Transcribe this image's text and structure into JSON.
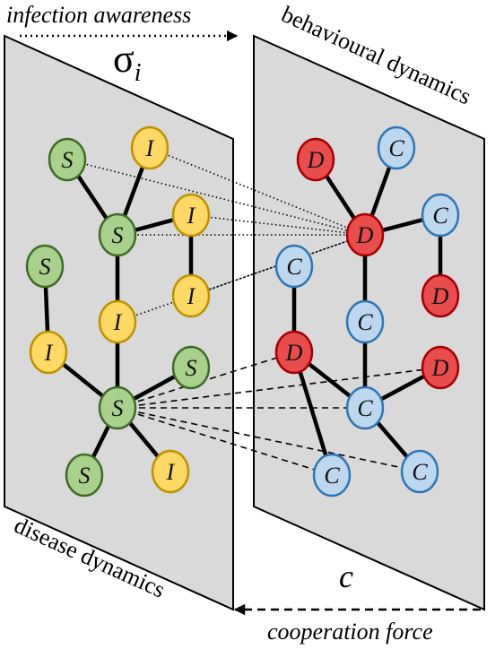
{
  "labels": {
    "top_arrow": "infection awareness",
    "sigma": "σ",
    "sigma_sub": "i",
    "right_plane": "behavioural dynamics",
    "left_plane": "disease dynamics",
    "c": "c",
    "bottom_arrow": "cooperation force"
  },
  "colors": {
    "plane_fill": "#d9d9d9",
    "S_fill": "#a9d18e",
    "S_stroke": "#3e6b23",
    "I_fill": "#ffd966",
    "I_stroke": "#bf9000",
    "D_fill": "#e84c4c",
    "D_stroke": "#a50000",
    "C_fill": "#bdd7ee",
    "C_stroke": "#2e75b6"
  },
  "disease_nodes": [
    {
      "id": "s1",
      "label": "S",
      "kind": "S"
    },
    {
      "id": "i1",
      "label": "I",
      "kind": "I"
    },
    {
      "id": "s2",
      "label": "S",
      "kind": "S"
    },
    {
      "id": "i2",
      "label": "I",
      "kind": "I"
    },
    {
      "id": "s3",
      "label": "S",
      "kind": "S"
    },
    {
      "id": "i3",
      "label": "I",
      "kind": "I"
    },
    {
      "id": "i4",
      "label": "I",
      "kind": "I"
    },
    {
      "id": "i5",
      "label": "I",
      "kind": "I"
    },
    {
      "id": "s4",
      "label": "S",
      "kind": "S"
    },
    {
      "id": "s5",
      "label": "S",
      "kind": "S"
    },
    {
      "id": "s6",
      "label": "S",
      "kind": "S"
    },
    {
      "id": "i6",
      "label": "I",
      "kind": "I"
    }
  ],
  "behaviour_nodes": [
    {
      "id": "d1",
      "label": "D",
      "kind": "D"
    },
    {
      "id": "c1",
      "label": "C",
      "kind": "C"
    },
    {
      "id": "d2",
      "label": "D",
      "kind": "D"
    },
    {
      "id": "c2",
      "label": "C",
      "kind": "C"
    },
    {
      "id": "c3",
      "label": "C",
      "kind": "C"
    },
    {
      "id": "d3",
      "label": "D",
      "kind": "D"
    },
    {
      "id": "c4",
      "label": "C",
      "kind": "C"
    },
    {
      "id": "d4",
      "label": "D",
      "kind": "D"
    },
    {
      "id": "d5",
      "label": "D",
      "kind": "D"
    },
    {
      "id": "c5",
      "label": "C",
      "kind": "C"
    },
    {
      "id": "c6",
      "label": "C",
      "kind": "C"
    },
    {
      "id": "c7",
      "label": "C",
      "kind": "C"
    }
  ],
  "edges": [
    [
      "s1",
      "s2"
    ],
    [
      "i1",
      "s2"
    ],
    [
      "s2",
      "i2"
    ],
    [
      "i2",
      "i3"
    ],
    [
      "s2",
      "i4"
    ],
    [
      "i4",
      "s4"
    ],
    [
      "s3",
      "i5"
    ],
    [
      "i5",
      "s4"
    ],
    [
      "s4",
      "s5"
    ],
    [
      "s4",
      "s6"
    ],
    [
      "s4",
      "i6"
    ],
    [
      "d1",
      "d2"
    ],
    [
      "c1",
      "d2"
    ],
    [
      "d2",
      "c2"
    ],
    [
      "c2",
      "d3"
    ],
    [
      "d2",
      "c4"
    ],
    [
      "c3",
      "d4"
    ],
    [
      "c4",
      "c5"
    ],
    [
      "d4",
      "c5"
    ],
    [
      "c5",
      "d5"
    ],
    [
      "c5",
      "c7"
    ],
    [
      "d4",
      "c6"
    ]
  ],
  "interlayer_dotted": [
    [
      "s1",
      "d2"
    ],
    [
      "i1",
      "d2"
    ],
    [
      "i2",
      "d2"
    ],
    [
      "s2",
      "d2"
    ],
    [
      "i3",
      "d2"
    ],
    [
      "i4",
      "d2"
    ]
  ],
  "interlayer_dashed": [
    [
      "s4",
      "d4"
    ],
    [
      "s4",
      "d5"
    ],
    [
      "s4",
      "c5"
    ],
    [
      "s4",
      "c6"
    ],
    [
      "s4",
      "c7"
    ]
  ]
}
